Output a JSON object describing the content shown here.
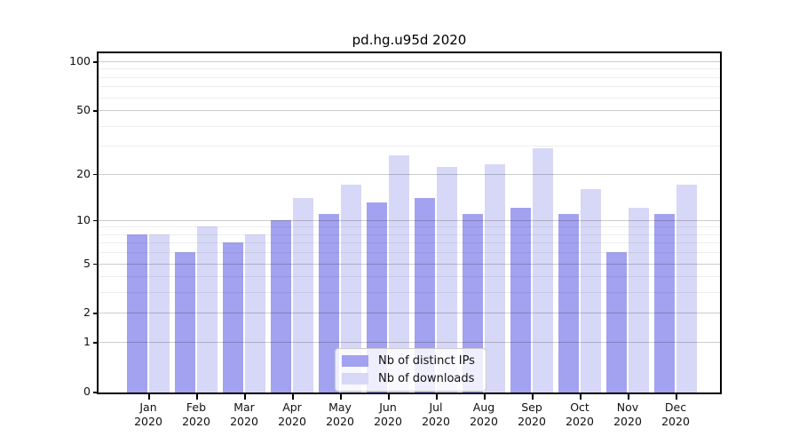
{
  "chart_data": {
    "type": "bar",
    "title": "pd.hg.u95d 2020",
    "year": "2020",
    "categories": [
      "Jan",
      "Feb",
      "Mar",
      "Apr",
      "May",
      "Jun",
      "Jul",
      "Aug",
      "Sep",
      "Oct",
      "Nov",
      "Dec"
    ],
    "series": [
      {
        "name": "Nb of distinct IPs",
        "color": "#a2a2f0",
        "values": [
          8,
          6,
          7,
          10,
          11,
          13,
          14,
          11,
          12,
          11,
          6,
          11
        ]
      },
      {
        "name": "Nb of downloads",
        "color": "#d7d7f7",
        "values": [
          8,
          9,
          8,
          14,
          17,
          26,
          22,
          23,
          29,
          16,
          12,
          17
        ]
      }
    ],
    "yscale": "log1p",
    "ylim": [
      0,
      100
    ],
    "ytick_values": [
      0,
      1,
      2,
      5,
      10,
      20,
      50,
      100
    ],
    "ytick_labels": [
      "0",
      "1",
      "2",
      "5",
      "10",
      "20",
      "50",
      "100"
    ],
    "major_gridline_values": [
      1,
      2,
      5,
      10,
      20,
      50,
      100
    ],
    "minor_gridline_values": [
      3,
      4,
      6,
      7,
      8,
      9,
      30,
      40,
      60,
      70,
      80,
      90
    ],
    "grid": true,
    "legend_position": "bottom-center"
  }
}
